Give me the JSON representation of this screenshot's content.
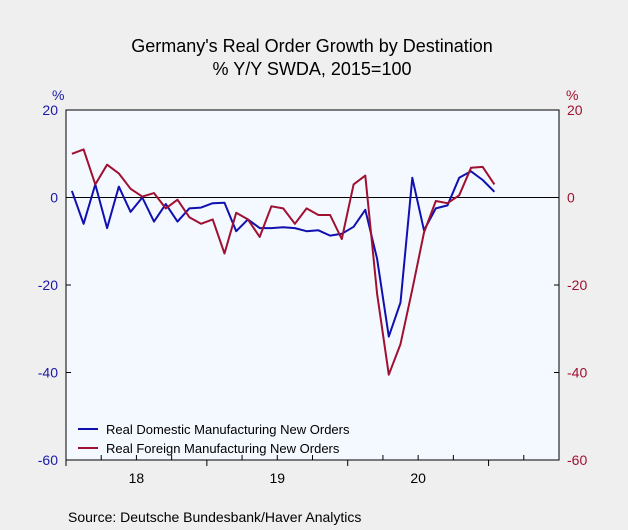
{
  "chart_data": {
    "type": "line",
    "title": "Germany's Real Order Growth by Destination",
    "subtitle": "% Y/Y   SWDA, 2015=100",
    "ylabel_left": "%",
    "ylabel_right": "%",
    "ylim": [
      -60,
      20
    ],
    "yticks": [
      20,
      0,
      -20,
      -40,
      -60
    ],
    "year_labels": [
      {
        "label": "18",
        "month_index": 6
      },
      {
        "label": "19",
        "month_index": 18
      },
      {
        "label": "20",
        "month_index": 30
      }
    ],
    "x_months": [
      "2018-01",
      "2018-02",
      "2018-03",
      "2018-04",
      "2018-05",
      "2018-06",
      "2018-07",
      "2018-08",
      "2018-09",
      "2018-10",
      "2018-11",
      "2018-12",
      "2019-01",
      "2019-02",
      "2019-03",
      "2019-04",
      "2019-05",
      "2019-06",
      "2019-07",
      "2019-08",
      "2019-09",
      "2019-10",
      "2019-11",
      "2019-12",
      "2020-01",
      "2020-02",
      "2020-03",
      "2020-04",
      "2020-05",
      "2020-06",
      "2020-07",
      "2020-08",
      "2020-09",
      "2020-10",
      "2020-11",
      "2020-12",
      "2021-01",
      "2021-02",
      "2021-03",
      "2021-04",
      "2021-05",
      "2021-06"
    ],
    "series": [
      {
        "name": "Real Domestic Manufacturing New Orders",
        "color": "#1010b0",
        "values": [
          1.5,
          -6,
          3,
          -7,
          2.5,
          -3.3,
          0,
          -5.5,
          -1.5,
          -5.5,
          -2.5,
          -2.3,
          -1.3,
          -1.2,
          -7.7,
          -5,
          -7,
          -7,
          -6.8,
          -7,
          -7.7,
          -7.5,
          -8.7,
          -8.3,
          -6.7,
          -2.8,
          -14,
          -31.8,
          -24,
          4.5,
          -7.5,
          -2.5,
          -1.8,
          4.5,
          6,
          4,
          1.3
        ]
      },
      {
        "name": "Real Foreign Manufacturing New Orders",
        "color": "#a01030",
        "values": [
          10,
          11,
          3,
          7.5,
          5.5,
          2,
          0.2,
          1,
          -2.5,
          -0.5,
          -4.5,
          -6,
          -5,
          -12.8,
          -3.5,
          -5,
          -9,
          -2,
          -2.5,
          -6,
          -2.5,
          -4,
          -4,
          -9.5,
          3,
          5,
          -22,
          -40.5,
          -33.5,
          -21,
          -8,
          -0.8,
          -1.3,
          0.5,
          6.8,
          7,
          3
        ]
      }
    ],
    "legend_position": "bottom-left",
    "zero_line": true
  },
  "footer": {
    "source": "Source:   Deutsche Bundesbank/Haver Analytics"
  }
}
